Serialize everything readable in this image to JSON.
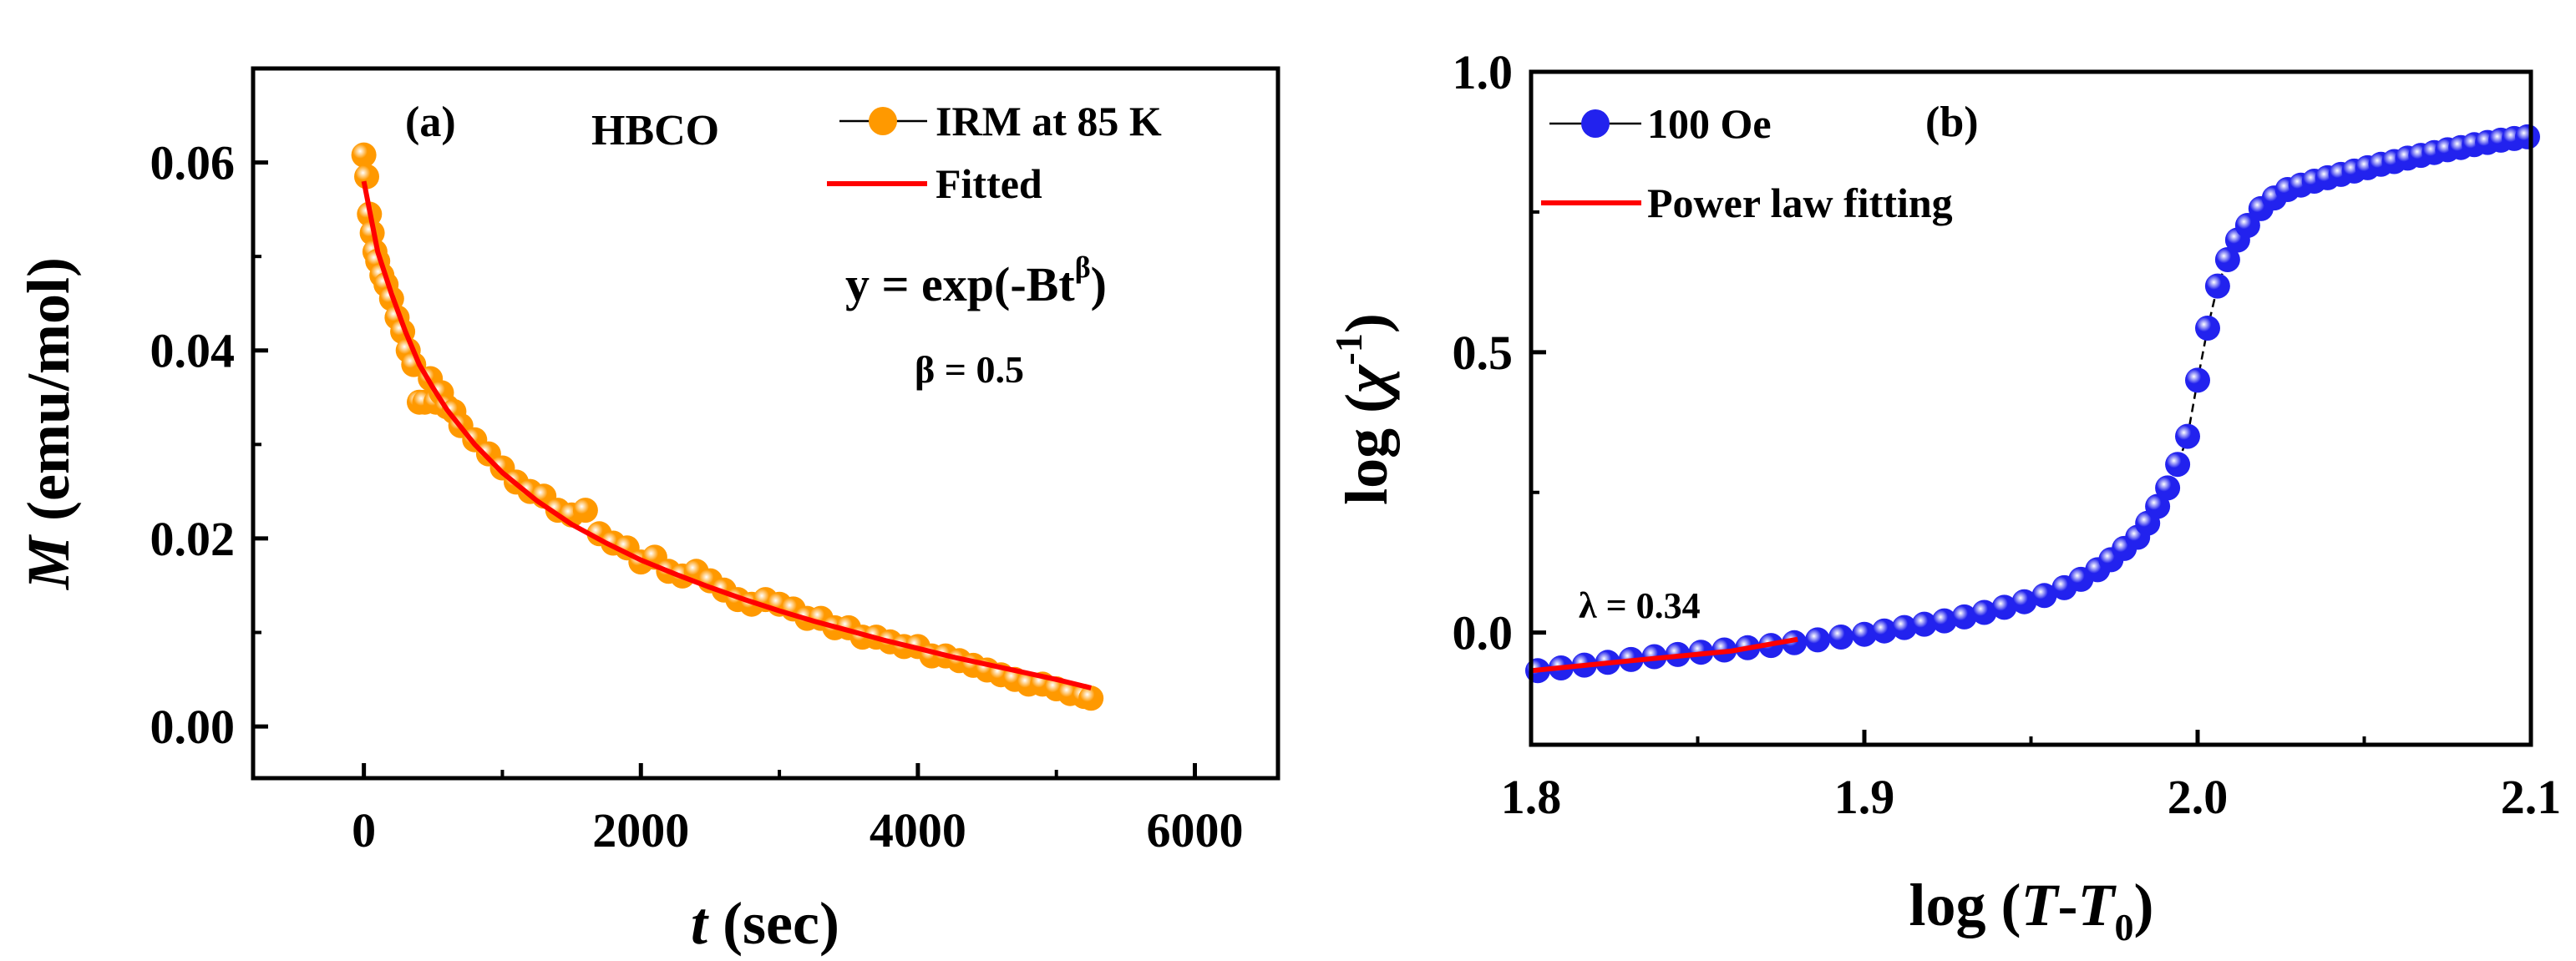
{
  "chart_data": [
    {
      "type": "scatter",
      "panel_label": "(a)",
      "sample": "HBCO",
      "xlabel": {
        "italic": "t",
        "rest": " (sec)"
      },
      "ylabel": {
        "italic": "M",
        "rest": " (emu/mol)"
      },
      "xlim": [
        -800,
        6600
      ],
      "ylim": [
        -0.0055,
        0.07
      ],
      "xticks": [
        0,
        2000,
        4000,
        6000
      ],
      "xtick_labels": [
        "0",
        "2000",
        "4000",
        "6000"
      ],
      "yticks": [
        0.0,
        0.02,
        0.04,
        0.06
      ],
      "ytick_labels": [
        "0.00",
        "0.02",
        "0.04",
        "0.06"
      ],
      "grid": false,
      "legend_position": "top-right",
      "series": [
        {
          "name": "IRM at 85 K",
          "style": "points",
          "color": "#ff9900",
          "points": [
            [
              0,
              0.0608
            ],
            [
              20,
              0.0585
            ],
            [
              40,
              0.0545
            ],
            [
              60,
              0.0525
            ],
            [
              80,
              0.0505
            ],
            [
              100,
              0.0495
            ],
            [
              130,
              0.048
            ],
            [
              160,
              0.047
            ],
            [
              200,
              0.0455
            ],
            [
              240,
              0.0435
            ],
            [
              280,
              0.042
            ],
            [
              320,
              0.04
            ],
            [
              360,
              0.0385
            ],
            [
              400,
              0.0345
            ],
            [
              440,
              0.0345
            ],
            [
              480,
              0.037
            ],
            [
              520,
              0.0345
            ],
            [
              560,
              0.0355
            ],
            [
              600,
              0.034
            ],
            [
              650,
              0.0335
            ],
            [
              700,
              0.032
            ],
            [
              800,
              0.0305
            ],
            [
              900,
              0.029
            ],
            [
              1000,
              0.0275
            ],
            [
              1100,
              0.026
            ],
            [
              1200,
              0.025
            ],
            [
              1300,
              0.0245
            ],
            [
              1400,
              0.023
            ],
            [
              1500,
              0.0225
            ],
            [
              1600,
              0.023
            ],
            [
              1700,
              0.0205
            ],
            [
              1800,
              0.0195
            ],
            [
              1900,
              0.019
            ],
            [
              2000,
              0.0175
            ],
            [
              2100,
              0.018
            ],
            [
              2200,
              0.0165
            ],
            [
              2300,
              0.016
            ],
            [
              2400,
              0.0165
            ],
            [
              2500,
              0.0155
            ],
            [
              2600,
              0.0145
            ],
            [
              2700,
              0.0135
            ],
            [
              2800,
              0.013
            ],
            [
              2900,
              0.0135
            ],
            [
              3000,
              0.013
            ],
            [
              3100,
              0.0125
            ],
            [
              3200,
              0.0115
            ],
            [
              3300,
              0.0115
            ],
            [
              3400,
              0.0105
            ],
            [
              3500,
              0.0105
            ],
            [
              3600,
              0.0095
            ],
            [
              3700,
              0.0095
            ],
            [
              3800,
              0.009
            ],
            [
              3900,
              0.0085
            ],
            [
              4000,
              0.0085
            ],
            [
              4100,
              0.0075
            ],
            [
              4200,
              0.0075
            ],
            [
              4300,
              0.007
            ],
            [
              4400,
              0.0065
            ],
            [
              4500,
              0.006
            ],
            [
              4600,
              0.0055
            ],
            [
              4700,
              0.005
            ],
            [
              4800,
              0.0045
            ],
            [
              4900,
              0.0045
            ],
            [
              5000,
              0.004
            ],
            [
              5100,
              0.0035
            ],
            [
              5200,
              0.0032
            ],
            [
              5250,
              0.003
            ]
          ]
        },
        {
          "name": "Fitted",
          "style": "line",
          "color": "#ff0000",
          "points": [
            [
              0,
              0.058
            ],
            [
              100,
              0.0505
            ],
            [
              200,
              0.046
            ],
            [
              300,
              0.042
            ],
            [
              400,
              0.0385
            ],
            [
              500,
              0.036
            ],
            [
              600,
              0.0337
            ],
            [
              800,
              0.03
            ],
            [
              1000,
              0.027
            ],
            [
              1250,
              0.024
            ],
            [
              1500,
              0.0215
            ],
            [
              1750,
              0.0195
            ],
            [
              2000,
              0.0177
            ],
            [
              2250,
              0.0162
            ],
            [
              2500,
              0.0148
            ],
            [
              2750,
              0.0135
            ],
            [
              3000,
              0.0123
            ],
            [
              3250,
              0.0112
            ],
            [
              3500,
              0.0102
            ],
            [
              3750,
              0.0092
            ],
            [
              4000,
              0.0083
            ],
            [
              4250,
              0.0074
            ],
            [
              4500,
              0.0066
            ],
            [
              4750,
              0.0058
            ],
            [
              5000,
              0.005
            ],
            [
              5250,
              0.0041
            ]
          ]
        }
      ],
      "annotations": {
        "equation_main": "y = exp(-Bt",
        "equation_sup": "β",
        "equation_close": ")",
        "beta_text": "β = 0.5"
      }
    },
    {
      "type": "line",
      "panel_label": "(b)",
      "xlabel": {
        "prefix": "log (",
        "var1": "T",
        "dash": "-",
        "var2": "T",
        "sub": "0",
        "suffix": ")"
      },
      "ylabel": {
        "prefix": "log (",
        "symbol": "χ",
        "sup": "-1",
        "suffix": ")"
      },
      "xlim": [
        1.8,
        2.1
      ],
      "ylim": [
        -0.2,
        1.0
      ],
      "xticks": [
        1.8,
        1.9,
        2.0,
        2.1
      ],
      "xtick_labels": [
        "1.8",
        "1.9",
        "2.0",
        "2.1"
      ],
      "yticks": [
        0.0,
        0.5,
        1.0
      ],
      "ytick_labels": [
        "0.0",
        "0.5",
        "1.0"
      ],
      "grid": false,
      "legend_position": "top-left",
      "series": [
        {
          "name": "100 Oe",
          "style": "line+points",
          "color": "#2222ee",
          "points": [
            [
              1.802,
              -0.068
            ],
            [
              1.809,
              -0.063
            ],
            [
              1.816,
              -0.058
            ],
            [
              1.823,
              -0.053
            ],
            [
              1.83,
              -0.048
            ],
            [
              1.837,
              -0.043
            ],
            [
              1.844,
              -0.039
            ],
            [
              1.851,
              -0.035
            ],
            [
              1.858,
              -0.031
            ],
            [
              1.865,
              -0.027
            ],
            [
              1.872,
              -0.023
            ],
            [
              1.879,
              -0.018
            ],
            [
              1.886,
              -0.013
            ],
            [
              1.893,
              -0.008
            ],
            [
              1.9,
              -0.003
            ],
            [
              1.906,
              0.003
            ],
            [
              1.912,
              0.009
            ],
            [
              1.918,
              0.015
            ],
            [
              1.924,
              0.021
            ],
            [
              1.93,
              0.028
            ],
            [
              1.936,
              0.036
            ],
            [
              1.942,
              0.045
            ],
            [
              1.948,
              0.055
            ],
            [
              1.954,
              0.066
            ],
            [
              1.96,
              0.08
            ],
            [
              1.965,
              0.095
            ],
            [
              1.97,
              0.112
            ],
            [
              1.974,
              0.13
            ],
            [
              1.978,
              0.15
            ],
            [
              1.982,
              0.17
            ],
            [
              1.985,
              0.195
            ],
            [
              1.988,
              0.225
            ],
            [
              1.991,
              0.258
            ],
            [
              1.994,
              0.3
            ],
            [
              1.997,
              0.35
            ],
            [
              2.0,
              0.45
            ],
            [
              2.003,
              0.543
            ],
            [
              2.006,
              0.618
            ],
            [
              2.009,
              0.665
            ],
            [
              2.012,
              0.7
            ],
            [
              2.015,
              0.726
            ],
            [
              2.019,
              0.756
            ],
            [
              2.023,
              0.775
            ],
            [
              2.027,
              0.79
            ],
            [
              2.031,
              0.798
            ],
            [
              2.035,
              0.805
            ],
            [
              2.039,
              0.811
            ],
            [
              2.043,
              0.817
            ],
            [
              2.047,
              0.823
            ],
            [
              2.051,
              0.829
            ],
            [
              2.055,
              0.835
            ],
            [
              2.059,
              0.84
            ],
            [
              2.063,
              0.846
            ],
            [
              2.067,
              0.851
            ],
            [
              2.071,
              0.856
            ],
            [
              2.075,
              0.861
            ],
            [
              2.079,
              0.865
            ],
            [
              2.083,
              0.87
            ],
            [
              2.087,
              0.874
            ],
            [
              2.091,
              0.878
            ],
            [
              2.095,
              0.881
            ],
            [
              2.099,
              0.884
            ]
          ]
        },
        {
          "name": "Power law fitting",
          "style": "line",
          "color": "#ff0000",
          "points": [
            [
              1.8,
              -0.068
            ],
            [
              1.83,
              -0.05
            ],
            [
              1.86,
              -0.033
            ],
            [
              1.88,
              -0.012
            ]
          ]
        }
      ],
      "annotations": {
        "lambda_text": "λ = 0.34"
      }
    }
  ]
}
